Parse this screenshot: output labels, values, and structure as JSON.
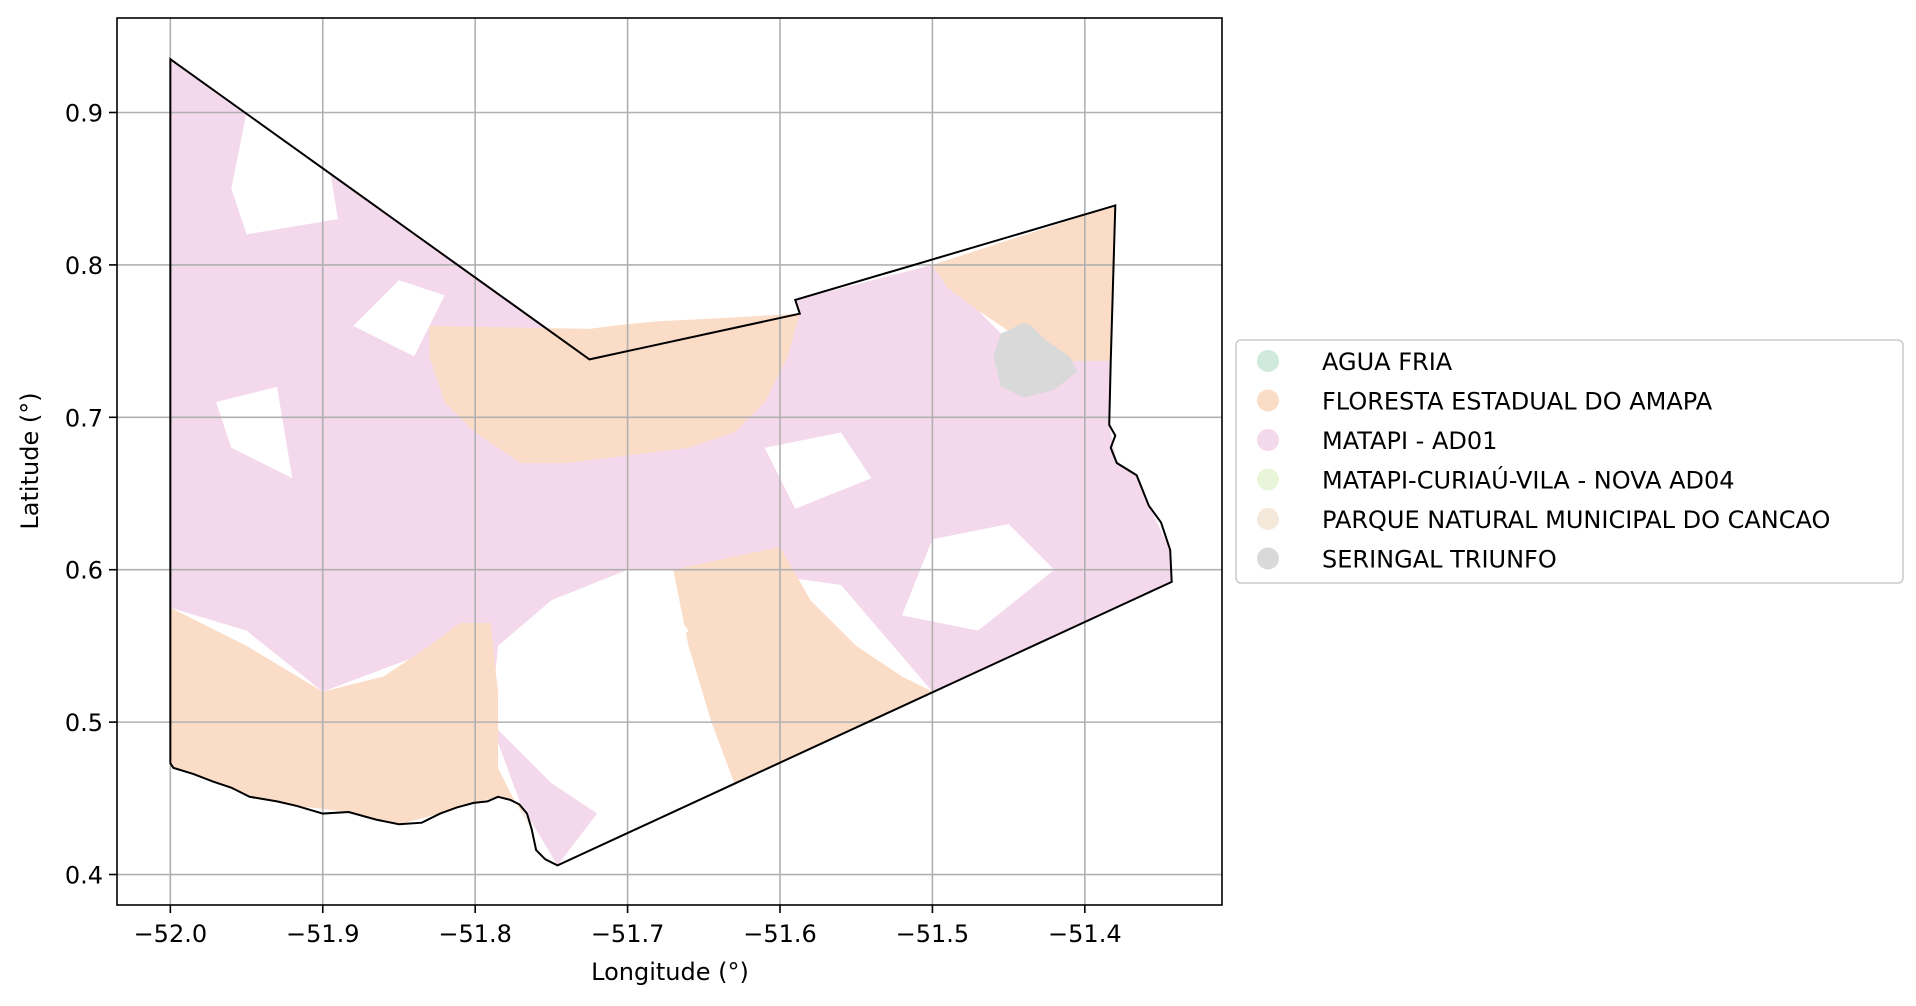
{
  "chart_data": {
    "type": "map",
    "xlabel": "Longitude (°)",
    "ylabel": "Latitude (°)",
    "xlim": [
      -52.035,
      -51.31
    ],
    "ylim": [
      0.38,
      0.962
    ],
    "grid": true,
    "legend_position": "right",
    "x_ticks": [
      {
        "value": -52.0,
        "label": "−52.0"
      },
      {
        "value": -51.9,
        "label": "−51.9"
      },
      {
        "value": -51.8,
        "label": "−51.8"
      },
      {
        "value": -51.7,
        "label": "−51.7"
      },
      {
        "value": -51.6,
        "label": "−51.6"
      },
      {
        "value": -51.5,
        "label": "−51.5"
      },
      {
        "value": -51.4,
        "label": "−51.4"
      }
    ],
    "y_ticks": [
      {
        "value": 0.4,
        "label": "0.4"
      },
      {
        "value": 0.5,
        "label": "0.5"
      },
      {
        "value": 0.6,
        "label": "0.6"
      },
      {
        "value": 0.7,
        "label": "0.7"
      },
      {
        "value": 0.8,
        "label": "0.8"
      },
      {
        "value": 0.9,
        "label": "0.9"
      }
    ],
    "legend": [
      {
        "label": "AGUA FRIA",
        "color": "#cfe9dc"
      },
      {
        "label": "FLORESTA ESTADUAL DO AMAPA",
        "color": "#fbdcc6"
      },
      {
        "label": "MATAPI - AD01",
        "color": "#f4d8eb"
      },
      {
        "label": "MATAPI-CURIAÚ-VILA - NOVA  AD04",
        "color": "#e9f5d8"
      },
      {
        "label": "PARQUE NATURAL MUNICIPAL DO CANCAO",
        "color": "#f4e8da"
      },
      {
        "label": "SERINGAL TRIUNFO",
        "color": "#d9d9d9"
      }
    ],
    "boundary": [
      [
        -52.0,
        0.935
      ],
      [
        -51.725,
        0.738
      ],
      [
        -51.587,
        0.768
      ],
      [
        -51.59,
        0.777
      ],
      [
        -51.38,
        0.839
      ],
      [
        -51.383,
        0.737
      ],
      [
        -51.384,
        0.695
      ],
      [
        -51.38,
        0.688
      ],
      [
        -51.383,
        0.68
      ],
      [
        -51.379,
        0.67
      ],
      [
        -51.366,
        0.662
      ],
      [
        -51.358,
        0.642
      ],
      [
        -51.35,
        0.631
      ],
      [
        -51.344,
        0.613
      ],
      [
        -51.343,
        0.592
      ],
      [
        -51.746,
        0.406
      ],
      [
        -51.754,
        0.41
      ],
      [
        -51.76,
        0.416
      ],
      [
        -51.763,
        0.43
      ],
      [
        -51.766,
        0.44
      ],
      [
        -51.771,
        0.446
      ],
      [
        -51.777,
        0.449
      ],
      [
        -51.785,
        0.451
      ],
      [
        -51.792,
        0.448
      ],
      [
        -51.801,
        0.447
      ],
      [
        -51.812,
        0.444
      ],
      [
        -51.823,
        0.44
      ],
      [
        -51.835,
        0.434
      ],
      [
        -51.85,
        0.433
      ],
      [
        -51.865,
        0.436
      ],
      [
        -51.883,
        0.441
      ],
      [
        -51.9,
        0.44
      ],
      [
        -51.917,
        0.445
      ],
      [
        -51.93,
        0.448
      ],
      [
        -51.948,
        0.451
      ],
      [
        -51.96,
        0.457
      ],
      [
        -51.972,
        0.461
      ],
      [
        -51.985,
        0.466
      ],
      [
        -51.998,
        0.47
      ],
      [
        -52.0,
        0.473
      ]
    ],
    "regions": [
      {
        "name": "MATAPI - AD01",
        "color": "#f4d8eb",
        "coordinates": [
          [
            -52.0,
            0.935
          ],
          [
            -51.725,
            0.738
          ],
          [
            -51.587,
            0.768
          ],
          [
            -51.59,
            0.777
          ],
          [
            -51.5,
            0.8
          ],
          [
            -51.49,
            0.785
          ],
          [
            -51.47,
            0.77
          ],
          [
            -51.45,
            0.75
          ],
          [
            -51.383,
            0.737
          ],
          [
            -51.384,
            0.695
          ],
          [
            -51.379,
            0.67
          ],
          [
            -51.366,
            0.662
          ],
          [
            -51.358,
            0.642
          ],
          [
            -51.344,
            0.613
          ],
          [
            -51.343,
            0.592
          ],
          [
            -51.5,
            0.52
          ],
          [
            -51.56,
            0.59
          ],
          [
            -51.63,
            0.6
          ],
          [
            -51.7,
            0.6
          ],
          [
            -51.75,
            0.58
          ],
          [
            -51.785,
            0.55
          ],
          [
            -51.79,
            0.5
          ],
          [
            -51.75,
            0.46
          ],
          [
            -51.72,
            0.44
          ],
          [
            -51.746,
            0.406
          ],
          [
            -51.77,
            0.446
          ],
          [
            -51.79,
            0.5
          ],
          [
            -51.82,
            0.55
          ],
          [
            -51.9,
            0.52
          ],
          [
            -51.95,
            0.56
          ],
          [
            -52.0,
            0.575
          ]
        ]
      },
      {
        "name": "FLORESTA ESTADUAL DO AMAPA",
        "color": "#fbdcc6",
        "coordinates": [
          [
            -52.0,
            0.575
          ],
          [
            -51.95,
            0.55
          ],
          [
            -51.9,
            0.52
          ],
          [
            -51.86,
            0.53
          ],
          [
            -51.83,
            0.55
          ],
          [
            -51.81,
            0.565
          ],
          [
            -51.79,
            0.565
          ],
          [
            -51.785,
            0.52
          ],
          [
            -51.785,
            0.47
          ],
          [
            -51.775,
            0.45
          ],
          [
            -51.763,
            0.43
          ],
          [
            -51.771,
            0.446
          ],
          [
            -51.785,
            0.451
          ],
          [
            -51.801,
            0.447
          ],
          [
            -51.823,
            0.44
          ],
          [
            -51.85,
            0.433
          ],
          [
            -51.883,
            0.441
          ],
          [
            -51.917,
            0.445
          ],
          [
            -51.948,
            0.451
          ],
          [
            -51.972,
            0.461
          ],
          [
            -51.998,
            0.47
          ],
          [
            -52.0,
            0.473
          ]
        ]
      },
      {
        "name": "FLORESTA ESTADUAL DO AMAPA",
        "color": "#fbdcc6",
        "coordinates": [
          [
            -51.83,
            0.76
          ],
          [
            -51.725,
            0.758
          ],
          [
            -51.71,
            0.76
          ],
          [
            -51.68,
            0.763
          ],
          [
            -51.64,
            0.765
          ],
          [
            -51.587,
            0.768
          ],
          [
            -51.595,
            0.74
          ],
          [
            -51.61,
            0.71
          ],
          [
            -51.63,
            0.69
          ],
          [
            -51.66,
            0.68
          ],
          [
            -51.7,
            0.675
          ],
          [
            -51.74,
            0.67
          ],
          [
            -51.77,
            0.67
          ],
          [
            -51.8,
            0.69
          ],
          [
            -51.82,
            0.71
          ],
          [
            -51.83,
            0.74
          ]
        ]
      },
      {
        "name": "FLORESTA ESTADUAL DO AMAPA",
        "color": "#fbdcc6",
        "coordinates": [
          [
            -51.67,
            0.6
          ],
          [
            -51.6,
            0.615
          ],
          [
            -51.58,
            0.58
          ],
          [
            -51.55,
            0.55
          ],
          [
            -51.52,
            0.53
          ],
          [
            -51.5,
            0.52
          ],
          [
            -51.63,
            0.46
          ],
          [
            -51.645,
            0.5
          ],
          [
            -51.66,
            0.55
          ]
        ]
      },
      {
        "name": "FLORESTA ESTADUAL DO AMAPA",
        "color": "#fbdcc6",
        "coordinates": [
          [
            -51.5,
            0.8
          ],
          [
            -51.38,
            0.839
          ],
          [
            -51.383,
            0.737
          ],
          [
            -51.41,
            0.737
          ],
          [
            -51.44,
            0.75
          ],
          [
            -51.47,
            0.77
          ],
          [
            -51.49,
            0.785
          ]
        ]
      },
      {
        "name": "SERINGAL TRIUNFO",
        "color": "#d9d9d9",
        "coordinates": [
          [
            -51.44,
            0.762
          ],
          [
            -51.455,
            0.755
          ],
          [
            -51.46,
            0.74
          ],
          [
            -51.455,
            0.72
          ],
          [
            -51.44,
            0.713
          ],
          [
            -51.42,
            0.718
          ],
          [
            -51.405,
            0.73
          ],
          [
            -51.41,
            0.74
          ],
          [
            -51.425,
            0.75
          ],
          [
            -51.435,
            0.76
          ]
        ]
      }
    ],
    "white_patches": [
      [
        [
          -51.95,
          0.9
        ],
        [
          -51.895,
          0.86
        ],
        [
          -51.89,
          0.83
        ],
        [
          -51.95,
          0.82
        ],
        [
          -51.96,
          0.85
        ]
      ],
      [
        [
          -51.85,
          0.79
        ],
        [
          -51.82,
          0.78
        ],
        [
          -51.84,
          0.74
        ],
        [
          -51.88,
          0.76
        ]
      ],
      [
        [
          -51.96,
          0.68
        ],
        [
          -51.92,
          0.66
        ],
        [
          -51.93,
          0.72
        ],
        [
          -51.97,
          0.71
        ]
      ],
      [
        [
          -51.76,
          0.54
        ],
        [
          -51.72,
          0.5
        ],
        [
          -51.66,
          0.56
        ],
        [
          -51.69,
          0.6
        ]
      ],
      [
        [
          -51.5,
          0.62
        ],
        [
          -51.45,
          0.63
        ],
        [
          -51.42,
          0.6
        ],
        [
          -51.47,
          0.56
        ],
        [
          -51.52,
          0.57
        ]
      ],
      [
        [
          -51.61,
          0.68
        ],
        [
          -51.56,
          0.69
        ],
        [
          -51.54,
          0.66
        ],
        [
          -51.59,
          0.64
        ]
      ]
    ]
  }
}
